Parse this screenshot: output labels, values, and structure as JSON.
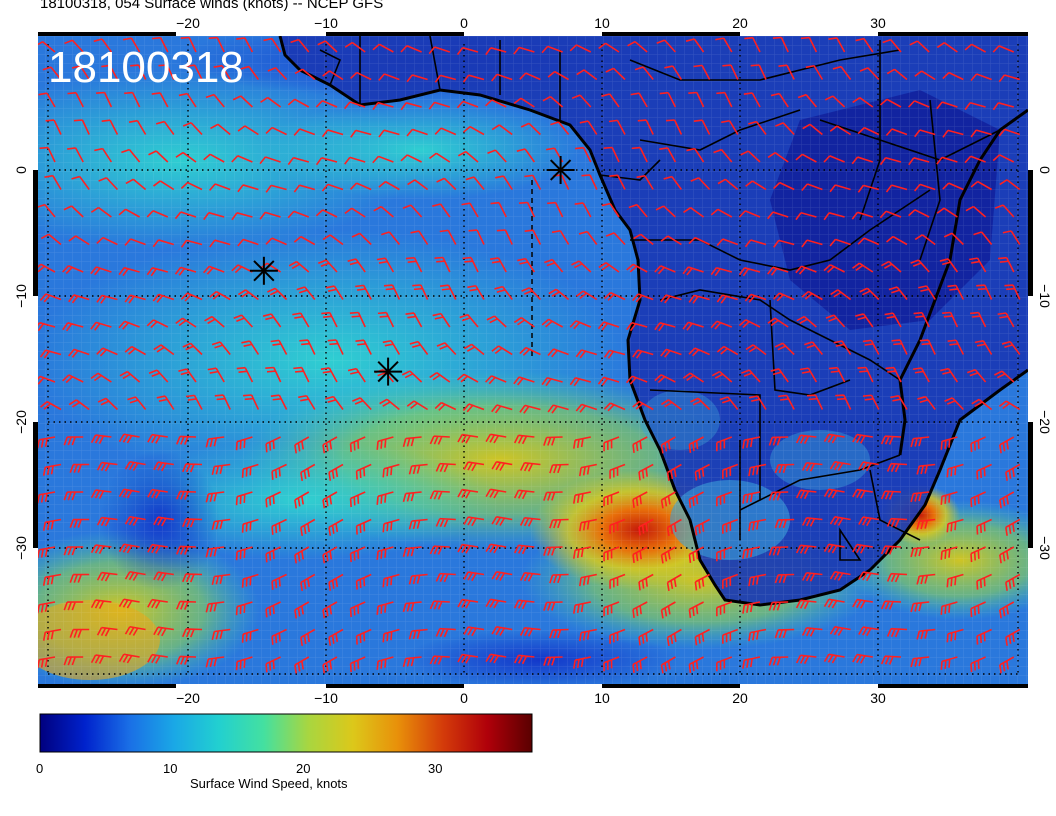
{
  "title": "18100318, 054 Surface winds (knots) -- NCEP GFS",
  "stamp": "18100318",
  "lon_ticks_top": [
    "−20",
    "−10",
    "0",
    "10",
    "20",
    "30"
  ],
  "lon_ticks_bottom": [
    "−20",
    "−10",
    "0",
    "10",
    "20",
    "30"
  ],
  "lat_ticks": [
    "0",
    "−10",
    "−20",
    "−30"
  ],
  "colorbar": {
    "title": "Surface Wind Speed, knots",
    "ticks": [
      "0",
      "10",
      "20",
      "30"
    ],
    "range": [
      0,
      37
    ],
    "colors": [
      "#00007f",
      "#0022cc",
      "#1a6fe6",
      "#1aa8e6",
      "#22d0d0",
      "#44e0a0",
      "#a8d640",
      "#dcc81a",
      "#e8900a",
      "#d43c0a",
      "#b0000a",
      "#5a0000"
    ]
  },
  "markers": [
    {
      "name": "marker-1",
      "lon": 7,
      "lat": 0
    },
    {
      "name": "marker-2",
      "lon": -14.5,
      "lat": -8
    },
    {
      "name": "marker-3",
      "lon": -5.5,
      "lat": -16
    }
  ],
  "colors": {
    "barb": "#ff2020",
    "land_line": "#000000"
  }
}
